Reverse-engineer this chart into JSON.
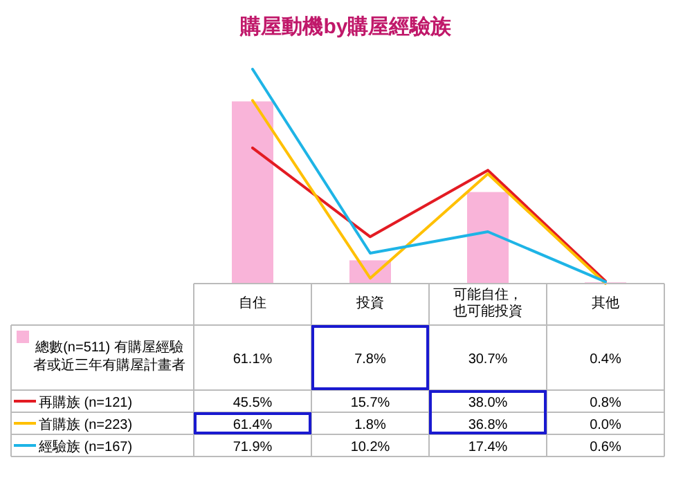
{
  "chart_data": {
    "type": "bar",
    "title": "購屋動機by購屋經驗族",
    "categories": [
      "自住",
      "投資",
      "可能自住，也可能投資",
      "其他"
    ],
    "legend": "bottom left",
    "series": [
      {
        "name": "總數(n=511) 有購屋經驗者或近三年有購屋計畫者",
        "color": "#f9b4d9",
        "values": [
          61.1,
          7.8,
          30.7,
          0.4
        ],
        "value_labels": [
          "61.1%",
          "7.8%",
          "30.7%",
          "0.4%"
        ]
      },
      {
        "name": "再購族 (n=121)",
        "type": "line",
        "color": "#e31b23",
        "values": [
          45.5,
          15.7,
          38.0,
          0.8
        ],
        "value_labels": [
          "45.5%",
          "15.7%",
          "38.0%",
          "0.8%"
        ]
      },
      {
        "name": "首購族 (n=223)",
        "type": "line",
        "color": "#ffc000",
        "values": [
          61.4,
          1.8,
          36.8,
          0.0
        ],
        "value_labels": [
          "61.4%",
          "1.8%",
          "36.8%",
          "0.0%"
        ]
      },
      {
        "name": "經驗族 (n=167)",
        "type": "line",
        "color": "#1eb4e6",
        "values": [
          71.9,
          10.2,
          17.4,
          0.6
        ],
        "value_labels": [
          "71.9%",
          "10.2%",
          "17.4%",
          "0.6%"
        ]
      }
    ]
  }
}
